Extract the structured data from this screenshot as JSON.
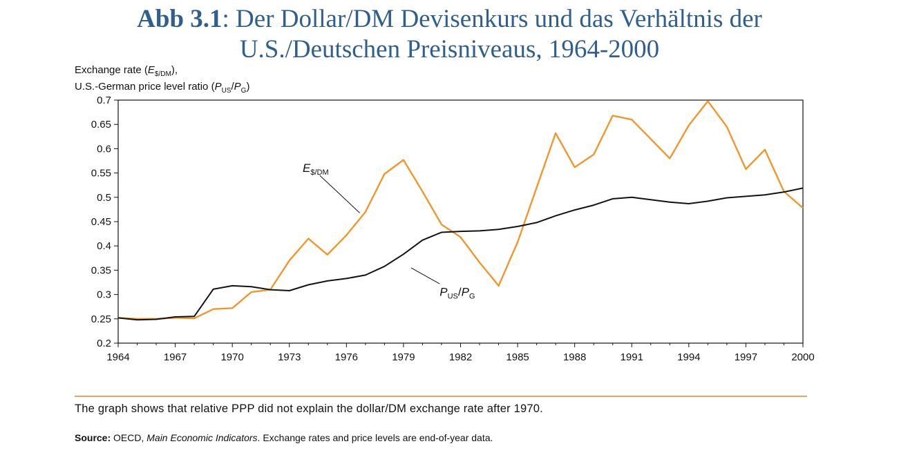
{
  "title": {
    "lead": "Abb 3.1",
    "rest": ": Der Dollar/DM Devisenkurs und das Verhältnis der",
    "line2": "U.S./Deutschen Preisniveaus, 1964-2000"
  },
  "ylabel": {
    "line1_a": "Exchange rate (",
    "line1_E": "E",
    "line1_sub": "$/DM",
    "line1_b": "),",
    "line2_a": "U.S.-German price level ratio (",
    "line2_P1": "P",
    "line2_sub1": "US",
    "line2_slash": "/",
    "line2_P2": "P",
    "line2_sub2": "G",
    "line2_b": ")"
  },
  "caption": "The graph shows that relative PPP did not explain the dollar/DM exchange rate after 1970.",
  "source": {
    "label": "Source:",
    "a": " OECD, ",
    "italic": "Main Economic Indicators",
    "b": ". Exchange rates and price levels are end-of-year data."
  },
  "colors": {
    "exchange_rate": "#f0962a",
    "price_ratio": "#111111",
    "title": "#2e5f8e",
    "rule": "#e8a55a"
  },
  "chart_data": {
    "type": "line",
    "xlim": [
      1964,
      2000
    ],
    "ylim": [
      0.2,
      0.7
    ],
    "x_ticks": [
      "1964",
      "1967",
      "1970",
      "1973",
      "1976",
      "1979",
      "1982",
      "1985",
      "1988",
      "1991",
      "1994",
      "1997",
      "2000"
    ],
    "y_ticks": [
      "0.7",
      "0.65",
      "0.6",
      "0.55",
      "0.5",
      "0.45",
      "0.4",
      "0.35",
      "0.3",
      "0.25",
      "0.2"
    ],
    "grid": false,
    "x": [
      1964,
      1965,
      1966,
      1967,
      1968,
      1969,
      1970,
      1971,
      1972,
      1973,
      1974,
      1975,
      1976,
      1977,
      1978,
      1979,
      1980,
      1981,
      1982,
      1983,
      1984,
      1985,
      1986,
      1987,
      1988,
      1989,
      1990,
      1991,
      1992,
      1993,
      1994,
      1995,
      1996,
      1997,
      1998,
      1999,
      2000
    ],
    "series": [
      {
        "key": "exchange_rate",
        "annotation_main": "E",
        "annotation_sub": "$/DM",
        "values": [
          0.252,
          0.25,
          0.25,
          0.252,
          0.251,
          0.27,
          0.272,
          0.305,
          0.31,
          0.37,
          0.415,
          0.382,
          0.422,
          0.47,
          0.548,
          0.577,
          0.512,
          0.444,
          0.418,
          0.366,
          0.318,
          0.408,
          0.52,
          0.632,
          0.562,
          0.588,
          0.668,
          0.66,
          0.62,
          0.58,
          0.648,
          0.698,
          0.645,
          0.558,
          0.598,
          0.512,
          0.478
        ]
      },
      {
        "key": "price_ratio",
        "annotation_main": "P",
        "annotation_sub": "US",
        "annotation_slash": "/",
        "annotation_main2": "P",
        "annotation_sub2": "G",
        "values": [
          0.252,
          0.248,
          0.249,
          0.254,
          0.255,
          0.311,
          0.318,
          0.316,
          0.31,
          0.308,
          0.32,
          0.328,
          0.333,
          0.34,
          0.358,
          0.383,
          0.412,
          0.428,
          0.43,
          0.431,
          0.434,
          0.44,
          0.448,
          0.462,
          0.474,
          0.484,
          0.497,
          0.5,
          0.495,
          0.49,
          0.487,
          0.492,
          0.499,
          0.502,
          0.505,
          0.511,
          0.519
        ]
      }
    ]
  }
}
